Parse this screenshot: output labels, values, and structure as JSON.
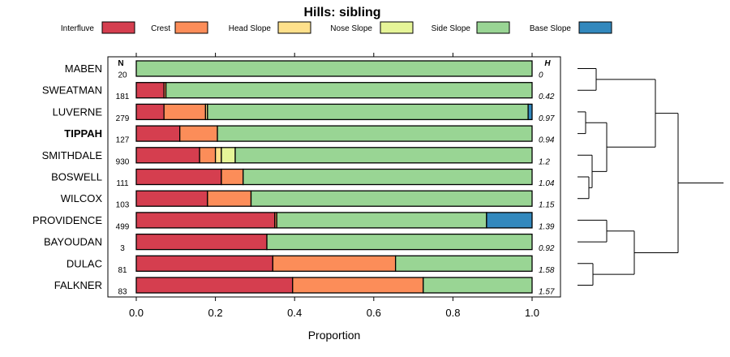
{
  "chart_data": {
    "type": "stacked-bar",
    "title": "Hills: sibling",
    "xlabel": "Proportion",
    "xlim": [
      0,
      1
    ],
    "xticks": [
      "0.0",
      "0.2",
      "0.4",
      "0.6",
      "0.8",
      "1.0"
    ],
    "n_header": "N",
    "h_header": "H",
    "legend": [
      {
        "name": "Interfluve",
        "color": "#d53e4f"
      },
      {
        "name": "Crest",
        "color": "#fc8d59"
      },
      {
        "name": "Head Slope",
        "color": "#fee08b"
      },
      {
        "name": "Nose Slope",
        "color": "#e6f598"
      },
      {
        "name": "Side Slope",
        "color": "#99d594"
      },
      {
        "name": "Base Slope",
        "color": "#3288bd"
      }
    ],
    "rows": [
      {
        "name": "MABEN",
        "bold": false,
        "n": "20",
        "h": "0",
        "values": [
          0,
          0,
          0,
          0,
          1.0,
          0
        ]
      },
      {
        "name": "SWEATMAN",
        "bold": false,
        "n": "181",
        "h": "0.42",
        "values": [
          0.07,
          0.005,
          0,
          0,
          0.925,
          0
        ]
      },
      {
        "name": "LUVERNE",
        "bold": false,
        "n": "279",
        "h": "0.97",
        "values": [
          0.07,
          0.105,
          0.005,
          0,
          0.81,
          0.01
        ]
      },
      {
        "name": "TIPPAH",
        "bold": true,
        "n": "127",
        "h": "0.94",
        "values": [
          0.11,
          0.095,
          0,
          0,
          0.795,
          0
        ]
      },
      {
        "name": "SMITHDALE",
        "bold": false,
        "n": "930",
        "h": "1.2",
        "values": [
          0.16,
          0.04,
          0.015,
          0.035,
          0.75,
          0
        ]
      },
      {
        "name": "BOSWELL",
        "bold": false,
        "n": "111",
        "h": "1.04",
        "values": [
          0.215,
          0.055,
          0,
          0,
          0.73,
          0
        ]
      },
      {
        "name": "WILCOX",
        "bold": false,
        "n": "103",
        "h": "1.15",
        "values": [
          0.18,
          0.11,
          0,
          0,
          0.71,
          0
        ]
      },
      {
        "name": "PROVIDENCE",
        "bold": false,
        "n": "499",
        "h": "1.39",
        "values": [
          0.35,
          0.005,
          0,
          0,
          0.53,
          0.115
        ]
      },
      {
        "name": "BAYOUDAN",
        "bold": false,
        "n": "3",
        "h": "0.92",
        "values": [
          0.33,
          0,
          0,
          0,
          0.67,
          0
        ]
      },
      {
        "name": "DULAC",
        "bold": false,
        "n": "81",
        "h": "1.58",
        "values": [
          0.345,
          0.31,
          0,
          0,
          0.345,
          0
        ]
      },
      {
        "name": "FALKNER",
        "bold": false,
        "n": "83",
        "h": "1.57",
        "values": [
          0.395,
          0.33,
          0,
          0,
          0.275,
          0
        ]
      }
    ],
    "dendrogram_order": [
      "MABEN",
      "SWEATMAN",
      "LUVERNE",
      "TIPPAH",
      "SMITHDALE",
      "BOSWELL",
      "WILCOX",
      "PROVIDENCE",
      "BAYOUDAN",
      "DULAC",
      "FALKNER"
    ]
  }
}
